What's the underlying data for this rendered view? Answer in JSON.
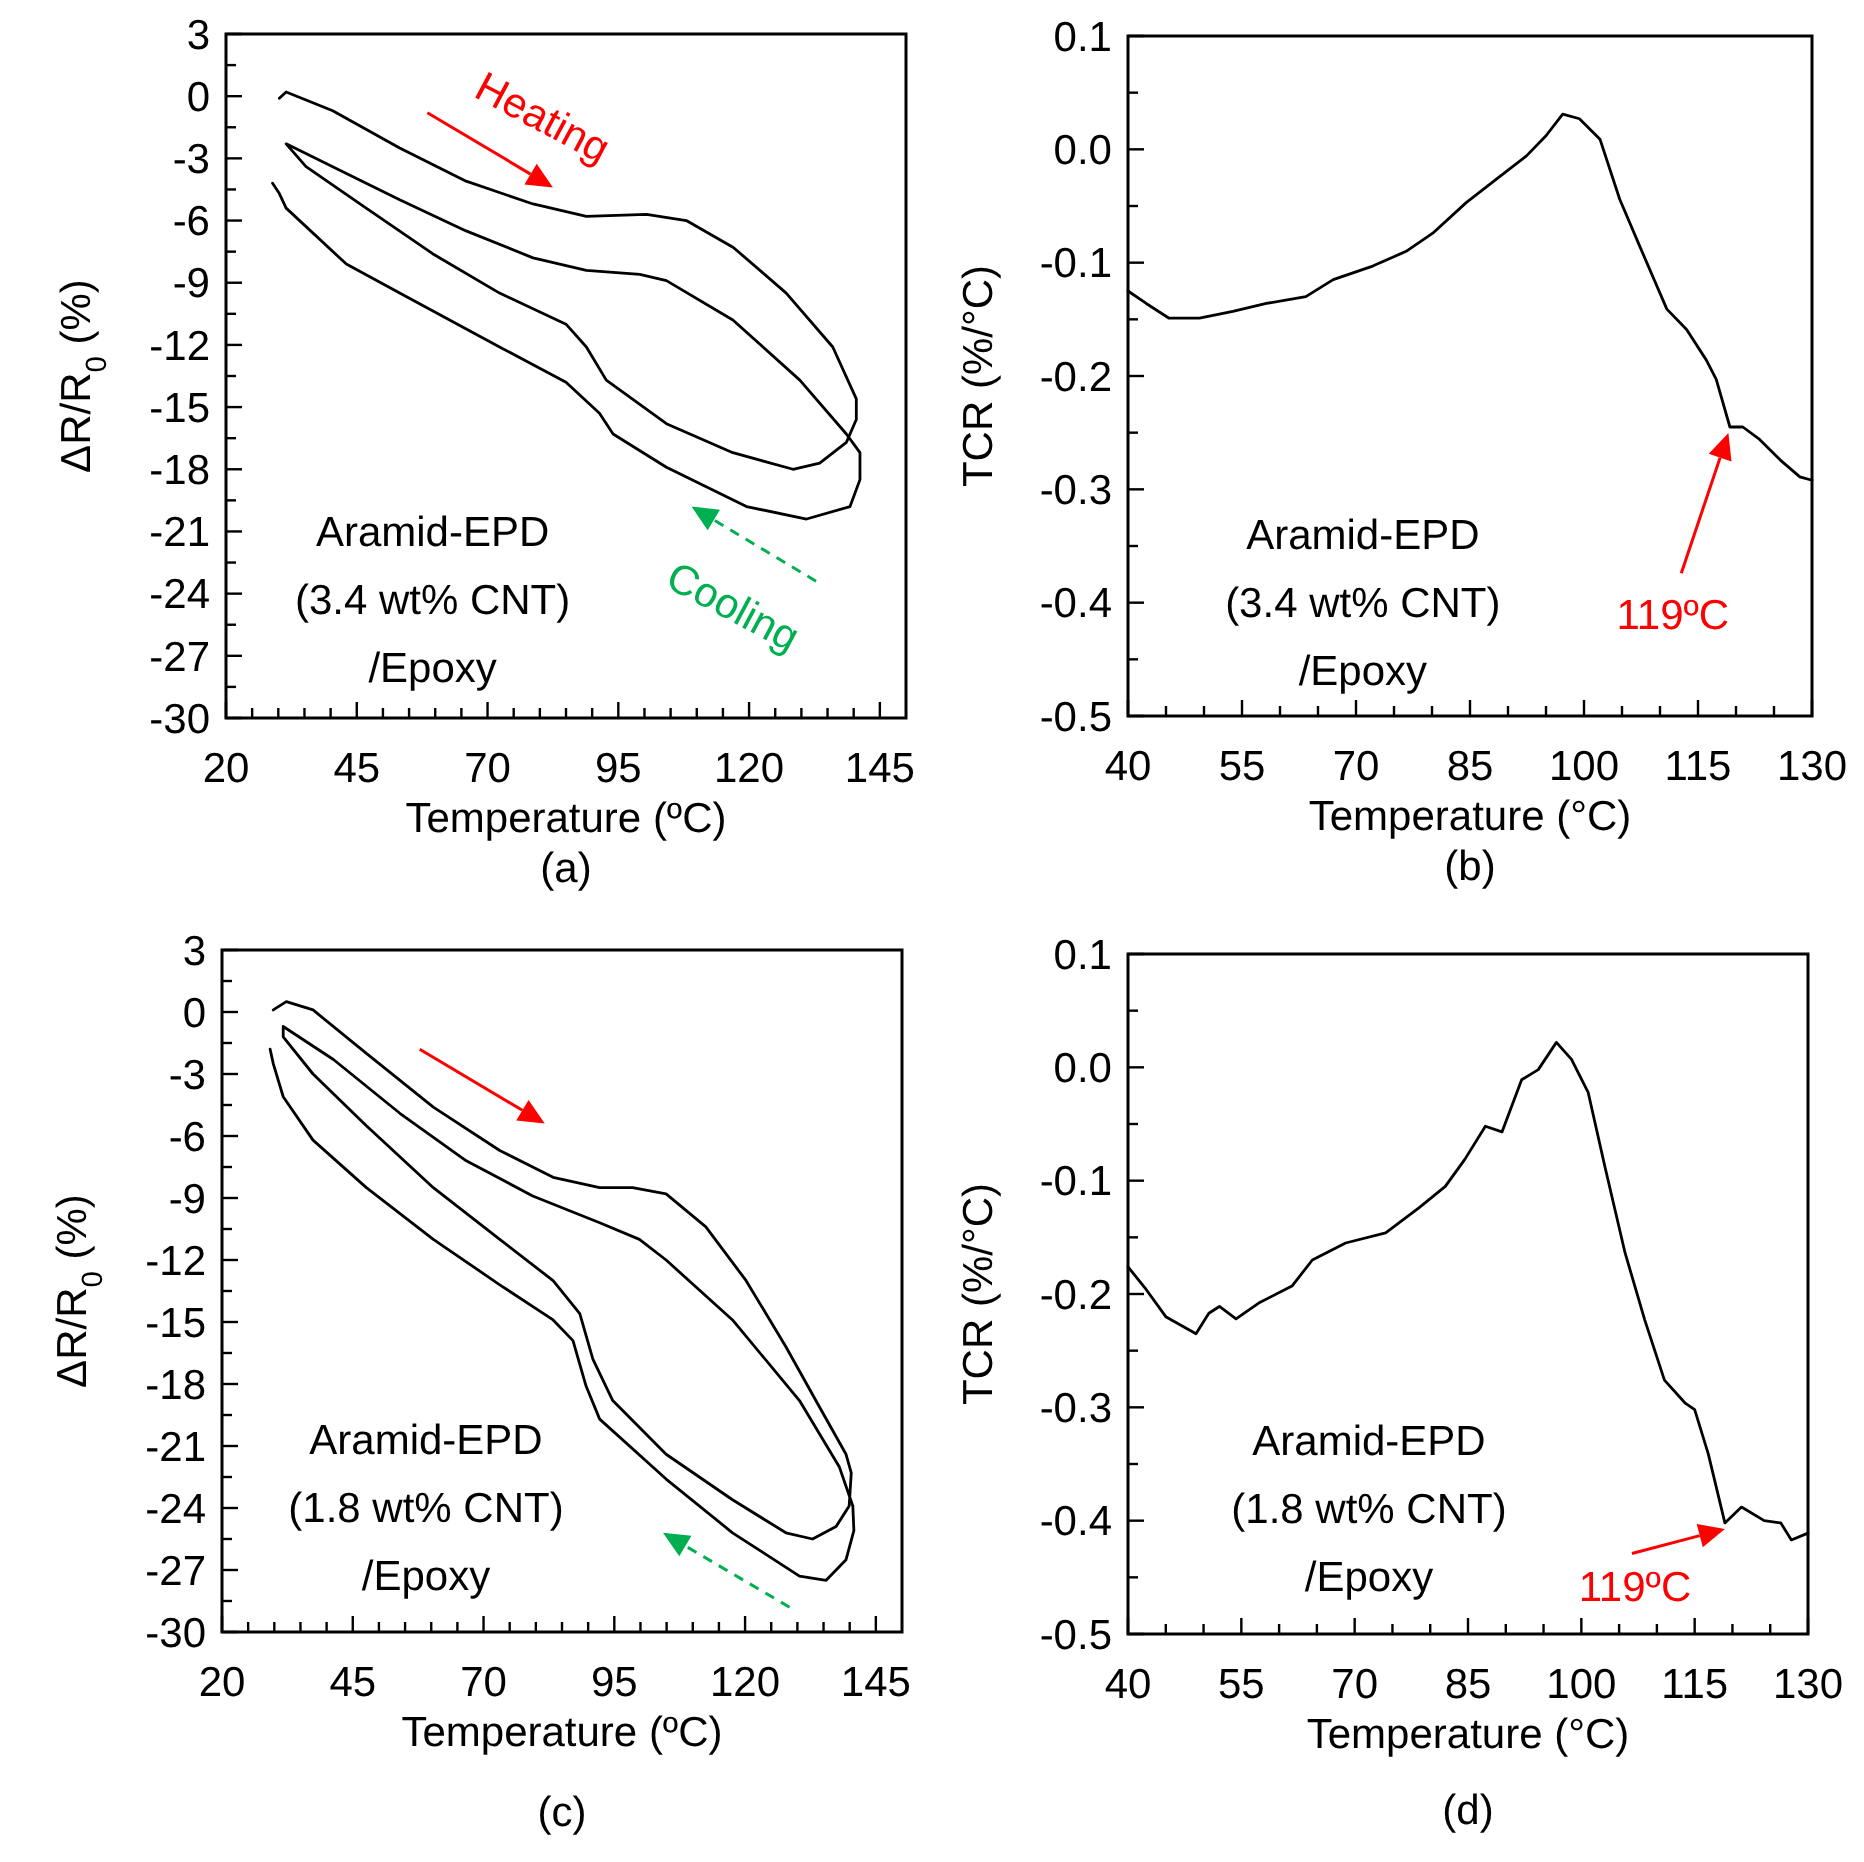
{
  "chart_data": [
    {
      "type": "line",
      "xlabel": "Temperature  (ºC)",
      "ylabel": "ΔR/R$_{0}$ (%)",
      "xlim": [
        20,
        150
      ],
      "ylim": [
        -30,
        3
      ],
      "xticks": [
        20,
        {
          "value": 25,
          "label": null
        },
        {
          "value": 30,
          "label": null
        },
        {
          "value": 35,
          "label": null
        },
        {
          "value": 40,
          "label": null
        },
        45,
        {
          "value": 50,
          "label": null
        },
        {
          "value": 55,
          "label": null
        },
        {
          "value": 60,
          "label": null
        },
        {
          "value": 65,
          "label": null
        },
        70,
        {
          "value": 75,
          "label": null
        },
        {
          "value": 80,
          "label": null
        },
        {
          "value": 85,
          "label": null
        },
        {
          "value": 90,
          "label": null
        },
        95,
        {
          "value": 100,
          "label": null
        },
        {
          "value": 105,
          "label": null
        },
        {
          "value": 110,
          "label": null
        },
        {
          "value": 115,
          "label": null
        },
        120,
        {
          "value": 125,
          "label": null
        },
        {
          "value": 130,
          "label": null
        },
        {
          "value": 135,
          "label": null
        },
        {
          "value": 140,
          "label": null
        },
        145
      ],
      "yticks": [
        3,
        {
          "value": 1.5,
          "label": null
        },
        0,
        {
          "value": -1.5,
          "label": null
        },
        -3,
        {
          "value": -4.5,
          "label": null
        },
        -6,
        {
          "value": -7.5,
          "label": null
        },
        -9,
        {
          "value": -10.5,
          "label": null
        },
        -12,
        {
          "value": -13.5,
          "label": null
        },
        -15,
        {
          "value": -16.5,
          "label": null
        },
        -18,
        {
          "value": -19.5,
          "label": null
        },
        -21,
        {
          "value": -22.5,
          "label": null
        },
        -24,
        {
          "value": -25.5,
          "label": null
        },
        -27,
        {
          "value": -28.5,
          "label": null
        },
        -30
      ],
      "series": [
        {
          "color": "#000000",
          "x": [
            30.2,
            31.5,
            40.4,
            53.2,
            65.9,
            78.7,
            88.9,
            100.4,
            108,
            117,
            127.1,
            136,
            140.5,
            140.5,
            138.6,
            133.5,
            128.4,
            116.9,
            104.2,
            92.7,
            88.9,
            85,
            72.3,
            59.5,
            46.8,
            35.3,
            31.5,
            40.4,
            53.2,
            65.9,
            78.7,
            88.9,
            99.1,
            104.2,
            116.9,
            129.7,
            138.6,
            141.2,
            141.2,
            139.3,
            131,
            119.5,
            104.2,
            94,
            91.4,
            85,
            72.3,
            53.2,
            43,
            31.5,
            30.2,
            28.9
          ],
          "values": [
            -0.1,
            0.2,
            -0.7,
            -2.5,
            -4.1,
            -5.2,
            -5.8,
            -5.7,
            -6.0,
            -7.3,
            -9.5,
            -12.1,
            -14.6,
            -15.6,
            -16.7,
            -17.7,
            -18.0,
            -17.2,
            -15.8,
            -13.7,
            -12.1,
            -11.0,
            -9.5,
            -7.6,
            -5.4,
            -3.4,
            -2.3,
            -3.4,
            -5.0,
            -6.5,
            -7.8,
            -8.4,
            -8.6,
            -8.9,
            -10.8,
            -13.7,
            -16.3,
            -17.2,
            -18.5,
            -19.8,
            -20.4,
            -19.8,
            -17.9,
            -16.3,
            -15.3,
            -13.8,
            -12.1,
            -9.5,
            -8.1,
            -5.4,
            -4.7,
            -4.2
          ]
        }
      ],
      "annotations": [
        "Aramid-EPD\n(3.4 wt% CNT)\n/Epoxy",
        "Heating",
        "Cooling",
        "(a)"
      ]
    },
    {
      "type": "line",
      "xlabel": "Temperature  (°C)",
      "ylabel": "TCR (%/°C)",
      "xlim": [
        40,
        130
      ],
      "ylim": [
        -0.5,
        0.1
      ],
      "xticks": [
        40,
        {
          "value": 45,
          "label": null
        },
        {
          "value": 50,
          "label": null
        },
        55,
        {
          "value": 60,
          "label": null
        },
        {
          "value": 65,
          "label": null
        },
        70,
        {
          "value": 75,
          "label": null
        },
        {
          "value": 80,
          "label": null
        },
        85,
        {
          "value": 90,
          "label": null
        },
        {
          "value": 95,
          "label": null
        },
        100,
        {
          "value": 105,
          "label": null
        },
        {
          "value": 110,
          "label": null
        },
        115,
        {
          "value": 120,
          "label": null
        },
        {
          "value": 125,
          "label": null
        },
        130
      ],
      "yticks": [
        0.1,
        {
          "value": 0.05,
          "label": null
        },
        {
          "value": 0,
          "label": "0.0"
        },
        {
          "value": -0.05,
          "label": null
        },
        -0.1,
        {
          "value": -0.15,
          "label": null
        },
        -0.2,
        {
          "value": -0.25,
          "label": null
        },
        -0.3,
        {
          "value": -0.35,
          "label": null
        },
        -0.4,
        {
          "value": -0.45,
          "label": null
        },
        -0.5
      ],
      "series": [
        {
          "color": "#000000",
          "x": [
            40,
            42.4,
            45.4,
            49.4,
            53.8,
            58.2,
            63.4,
            67,
            72.2,
            76.6,
            80.1,
            84.5,
            88.9,
            92.4,
            95,
            97.2,
            99.4,
            102.1,
            104.7,
            107.3,
            110.9,
            113.5,
            116.1,
            117.4,
            119.2,
            120.9,
            123.1,
            125.8,
            128.4,
            130
          ],
          "values": [
            -0.125,
            -0.136,
            -0.149,
            -0.149,
            -0.143,
            -0.136,
            -0.13,
            -0.115,
            -0.103,
            -0.09,
            -0.074,
            -0.047,
            -0.024,
            -0.006,
            0.012,
            0.031,
            0.027,
            0.009,
            -0.044,
            -0.085,
            -0.141,
            -0.159,
            -0.186,
            -0.203,
            -0.245,
            -0.245,
            -0.256,
            -0.274,
            -0.289,
            -0.292
          ]
        }
      ],
      "annotations": [
        "Aramid-EPD\n(3.4 wt% CNT)\n/Epoxy",
        "119ºC",
        "(b)"
      ]
    },
    {
      "type": "line",
      "xlabel": "Temperature  (ºC)",
      "ylabel": "ΔR/R$_{0}$ (%)",
      "xlim": [
        20,
        150
      ],
      "ylim": [
        -30,
        3
      ],
      "xticks": [
        20,
        {
          "value": 25,
          "label": null
        },
        {
          "value": 30,
          "label": null
        },
        {
          "value": 35,
          "label": null
        },
        {
          "value": 40,
          "label": null
        },
        45,
        {
          "value": 50,
          "label": null
        },
        {
          "value": 55,
          "label": null
        },
        {
          "value": 60,
          "label": null
        },
        {
          "value": 65,
          "label": null
        },
        70,
        {
          "value": 75,
          "label": null
        },
        {
          "value": 80,
          "label": null
        },
        {
          "value": 85,
          "label": null
        },
        {
          "value": 90,
          "label": null
        },
        95,
        {
          "value": 100,
          "label": null
        },
        {
          "value": 105,
          "label": null
        },
        {
          "value": 110,
          "label": null
        },
        {
          "value": 115,
          "label": null
        },
        120,
        {
          "value": 125,
          "label": null
        },
        {
          "value": 130,
          "label": null
        },
        {
          "value": 135,
          "label": null
        },
        {
          "value": 140,
          "label": null
        },
        145
      ],
      "yticks": [
        3,
        {
          "value": 1.5,
          "label": null
        },
        0,
        {
          "value": -1.5,
          "label": null
        },
        -3,
        {
          "value": -4.5,
          "label": null
        },
        -6,
        {
          "value": -7.5,
          "label": null
        },
        -9,
        {
          "value": -10.5,
          "label": null
        },
        -12,
        {
          "value": -13.5,
          "label": null
        },
        -15,
        {
          "value": -16.5,
          "label": null
        },
        -18,
        {
          "value": -19.5,
          "label": null
        },
        -21,
        {
          "value": -22.5,
          "label": null
        },
        -24,
        {
          "value": -25.5,
          "label": null
        },
        -27,
        {
          "value": -28.5,
          "label": null
        },
        -30
      ],
      "series": [
        {
          "color": "#000000",
          "x": [
            29.8,
            32.3,
            37.4,
            47.6,
            60.4,
            73.1,
            83.3,
            92.2,
            98.5,
            104.9,
            112.5,
            120.2,
            127.8,
            134.2,
            139.3,
            140.3,
            139.9,
            137.4,
            132.9,
            127.8,
            117.6,
            104.9,
            94.7,
            90.9,
            88.4,
            83.3,
            73.1,
            60.4,
            47.6,
            37.4,
            31.7,
            31.7,
            41.3,
            54,
            66.7,
            79.4,
            92.2,
            99.8,
            104.9,
            117.6,
            130.4,
            138,
            140.6,
            140.8,
            139.3,
            135.5,
            130.4,
            117.6,
            104.9,
            92.2,
            89.6,
            87.1,
            83.3,
            73.1,
            60.4,
            47.6,
            37.4,
            31.7,
            29.8,
            29.2
          ],
          "values": [
            0.1,
            0.5,
            0.1,
            -2.0,
            -4.6,
            -6.7,
            -8.0,
            -8.5,
            -8.5,
            -8.8,
            -10.4,
            -13.0,
            -16.2,
            -19.1,
            -21.4,
            -22.3,
            -23.9,
            -24.9,
            -25.5,
            -25.2,
            -23.6,
            -21.4,
            -18.8,
            -16.8,
            -14.6,
            -13.0,
            -11.0,
            -8.5,
            -5.5,
            -3.0,
            -1.2,
            -0.7,
            -2.3,
            -4.9,
            -7.2,
            -8.9,
            -10.2,
            -11.0,
            -12.0,
            -14.9,
            -18.8,
            -22.0,
            -23.9,
            -25.1,
            -26.5,
            -27.5,
            -27.3,
            -25.2,
            -22.6,
            -19.7,
            -18.1,
            -15.9,
            -14.9,
            -13.2,
            -11.0,
            -8.5,
            -6.2,
            -4.1,
            -2.5,
            -1.8
          ]
        }
      ],
      "annotations": [
        "Aramid-EPD\n(1.8 wt% CNT)\n/Epoxy",
        "(c)"
      ]
    },
    {
      "type": "line",
      "xlabel": "Temperature  (°C)",
      "ylabel": "TCR (%/°C)",
      "xlim": [
        40,
        130
      ],
      "ylim": [
        -0.5,
        0.1
      ],
      "xticks": [
        40,
        {
          "value": 45,
          "label": null
        },
        {
          "value": 50,
          "label": null
        },
        55,
        {
          "value": 60,
          "label": null
        },
        {
          "value": 65,
          "label": null
        },
        70,
        {
          "value": 75,
          "label": null
        },
        {
          "value": 80,
          "label": null
        },
        85,
        {
          "value": 90,
          "label": null
        },
        {
          "value": 95,
          "label": null
        },
        100,
        {
          "value": 105,
          "label": null
        },
        {
          "value": 110,
          "label": null
        },
        115,
        {
          "value": 120,
          "label": null
        },
        {
          "value": 125,
          "label": null
        },
        130
      ],
      "yticks": [
        0.1,
        {
          "value": 0.05,
          "label": null
        },
        {
          "value": 0,
          "label": "0.0"
        },
        {
          "value": -0.05,
          "label": null
        },
        -0.1,
        {
          "value": -0.15,
          "label": null
        },
        -0.2,
        {
          "value": -0.25,
          "label": null
        },
        -0.3,
        {
          "value": -0.35,
          "label": null
        },
        -0.4,
        {
          "value": -0.45,
          "label": null
        },
        -0.5
      ],
      "series": [
        {
          "color": "#000000",
          "x": [
            40,
            42.4,
            45,
            49,
            50.7,
            52.1,
            54.3,
            57.3,
            61.7,
            64.4,
            68.8,
            74.1,
            78.5,
            82,
            84.6,
            87.3,
            89.5,
            92.1,
            94.3,
            96.7,
            98.7,
            100.9,
            103.1,
            105.8,
            108.4,
            111,
            113.7,
            115,
            116.8,
            119,
            121.2,
            124.2,
            126.4,
            127.8,
            130
          ],
          "values": [
            -0.176,
            -0.196,
            -0.22,
            -0.235,
            -0.217,
            -0.211,
            -0.222,
            -0.208,
            -0.193,
            -0.17,
            -0.155,
            -0.146,
            -0.124,
            -0.105,
            -0.081,
            -0.052,
            -0.057,
            -0.011,
            -0.002,
            0.022,
            0.007,
            -0.022,
            -0.087,
            -0.164,
            -0.223,
            -0.276,
            -0.296,
            -0.302,
            -0.341,
            -0.402,
            -0.388,
            -0.4,
            -0.402,
            -0.417,
            -0.411
          ]
        }
      ],
      "annotations": [
        "Aramid-EPD\n(1.8 wt% CNT)\n/Epoxy",
        {
          "text": "119ºC",
          "x": 119,
          "y": -0.402
        },
        "(d)"
      ]
    }
  ]
}
